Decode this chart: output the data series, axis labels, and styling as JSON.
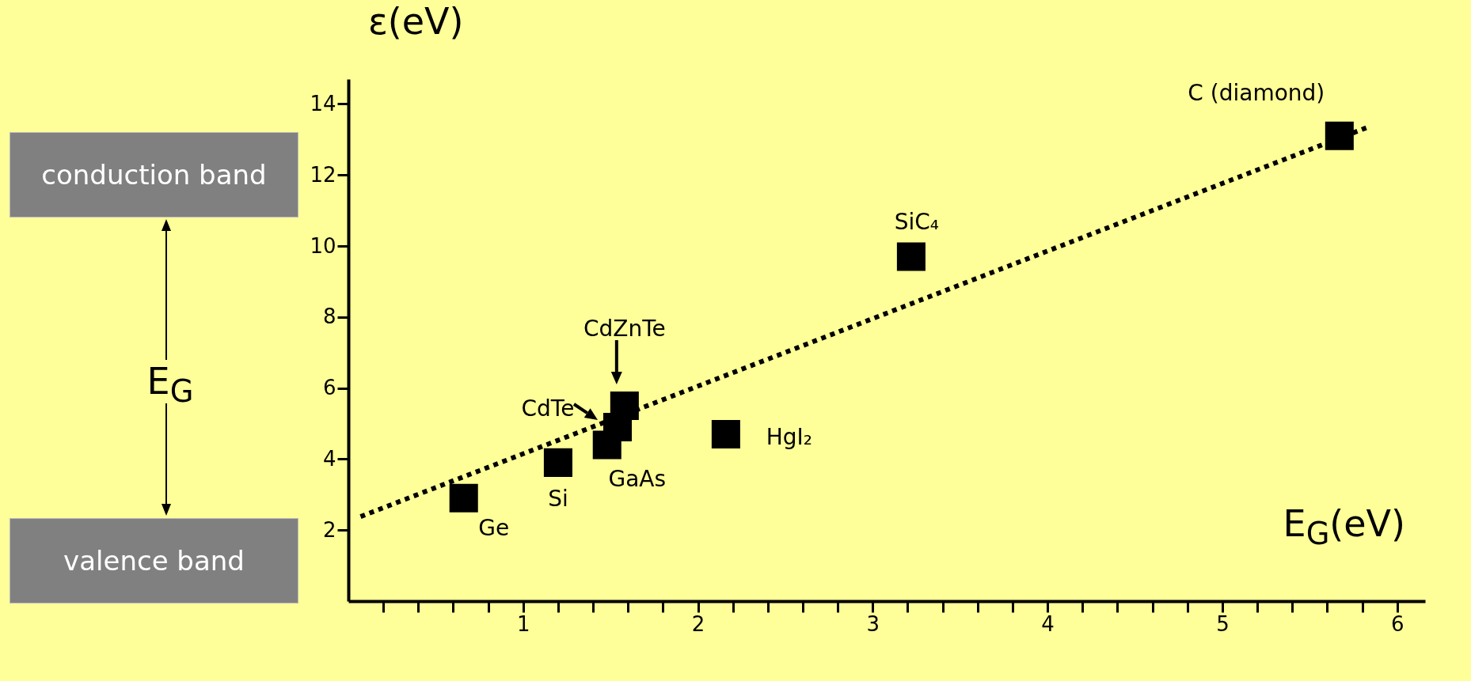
{
  "chart_data": {
    "type": "scatter",
    "xlabel": "E$_{G}$(eV)",
    "ylabel": "ε(eV)",
    "x": [
      0.66,
      1.2,
      1.48,
      1.54,
      1.58,
      2.16,
      3.22,
      5.67
    ],
    "series": [
      {
        "color": "#000000",
        "values": [
          2.9,
          3.9,
          4.4,
          4.9,
          5.5,
          4.7,
          9.7,
          13.1
        ]
      },
      {
        "type": "line",
        "color": "#000000",
        "line_style": "dotted",
        "marker": "none",
        "x": [
          0.07,
          5.84
        ],
        "values": [
          2.38,
          13.36
        ]
      }
    ],
    "marker": "square",
    "grid": false,
    "xlim": [
      0,
      6.16
    ],
    "ylim": [
      0,
      14.7
    ],
    "xticks": [
      {
        "value": 0.2,
        "label": null
      },
      {
        "value": 0.4,
        "label": null
      },
      {
        "value": 0.6,
        "label": null
      },
      {
        "value": 0.8,
        "label": null
      },
      1,
      {
        "value": 1.2,
        "label": null
      },
      {
        "value": 1.4,
        "label": null
      },
      {
        "value": 1.6,
        "label": null
      },
      {
        "value": 1.8,
        "label": null
      },
      2,
      {
        "value": 2.2,
        "label": null
      },
      {
        "value": 2.4,
        "label": null
      },
      {
        "value": 2.6,
        "label": null
      },
      {
        "value": 2.8,
        "label": null
      },
      3,
      {
        "value": 3.2,
        "label": null
      },
      {
        "value": 3.4,
        "label": null
      },
      {
        "value": 3.6,
        "label": null
      },
      {
        "value": 3.8,
        "label": null
      },
      4,
      {
        "value": 4.2,
        "label": null
      },
      {
        "value": 4.4,
        "label": null
      },
      {
        "value": 4.6,
        "label": null
      },
      {
        "value": 4.8,
        "label": null
      },
      5,
      {
        "value": 5.2,
        "label": null
      },
      {
        "value": 5.4,
        "label": null
      },
      {
        "value": 5.6,
        "label": null
      },
      {
        "value": 5.8,
        "label": null
      },
      6
    ],
    "yticks": [
      2,
      4,
      6,
      8,
      10,
      12,
      14
    ],
    "annotations": [
      "conduction band",
      "valence band",
      "E$_{G}$",
      {
        "text": "Ge",
        "x": 0.66,
        "y": 2.9
      },
      {
        "text": "Si",
        "x": 1.2,
        "y": 3.9
      },
      {
        "text": "GaAs",
        "x": 1.48,
        "y": 4.4
      },
      {
        "text": "CdTe",
        "x": 1.54,
        "y": 4.9
      },
      {
        "text": "CdZnTe",
        "x": 1.58,
        "y": 5.5
      },
      {
        "text": "HgI₂",
        "x": 2.16,
        "y": 4.7
      },
      {
        "text": "SiC₄",
        "x": 3.22,
        "y": 9.7
      },
      {
        "text": "C (diamond)",
        "x": 5.67,
        "y": 13.1
      }
    ]
  }
}
